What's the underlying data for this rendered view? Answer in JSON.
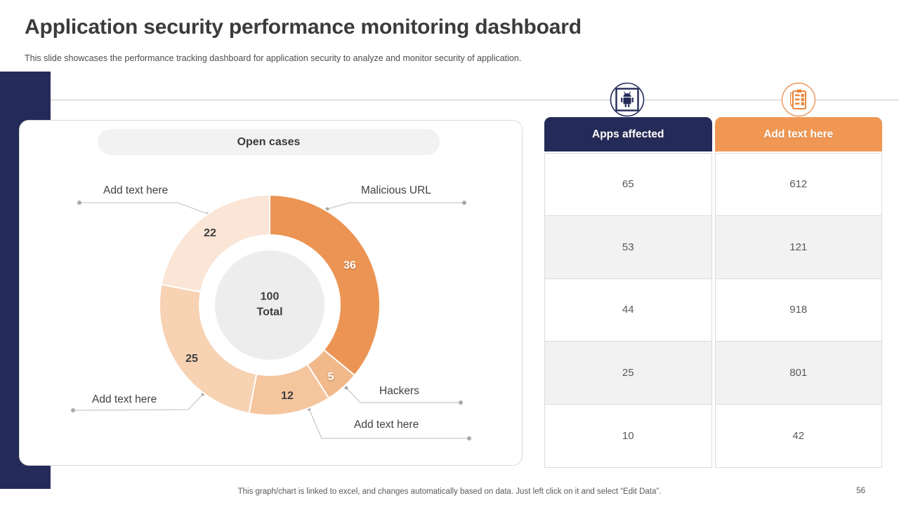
{
  "slide": {
    "title": "Application security performance monitoring dashboard",
    "subtitle": "This slide showcases the performance tracking dashboard for application security to analyze and monitor security of application.",
    "footer_note": "This graph/chart is linked to excel, and changes automatically based on data. Just left click on it and select “Edit Data”.",
    "page_number": "56"
  },
  "colors": {
    "navy": "#242b58",
    "orange": "#f09753",
    "panel_border": "#d9d9d9",
    "divider_gray": "#c6c6c6",
    "center_gray": "#ededed",
    "alt_row_gray": "#f2f2f2",
    "callout_line_gray": "#bdbdbd"
  },
  "donut": {
    "pill_label": "Open cases",
    "center": {
      "value": "100",
      "label": "Total"
    },
    "segments": [
      {
        "label": "Malicious URL",
        "value": 36,
        "color": "#ec9453",
        "value_color": "#ffffff"
      },
      {
        "label": "Hackers",
        "value": 5,
        "color": "#f1b88a",
        "value_color": "#ffffff"
      },
      {
        "label": "Add text here",
        "value": 12,
        "color": "#f5c59e",
        "value_color": "#3f3f3f"
      },
      {
        "label": "Add text here",
        "value": 25,
        "color": "#f7d2b3",
        "value_color": "#3f3f3f"
      },
      {
        "label": "Add text here",
        "value": 22,
        "color": "#fae5d6",
        "value_color": "#3f3f3f"
      }
    ]
  },
  "table": {
    "columns": [
      {
        "label": "Apps affected",
        "color": "#242b58",
        "icon": "android-icon"
      },
      {
        "label": "Add text here",
        "color": "#f09753",
        "icon": "clipboard-icon"
      }
    ],
    "rows": [
      {
        "apps": "65",
        "add": "612"
      },
      {
        "apps": "53",
        "add": "121"
      },
      {
        "apps": "44",
        "add": "918"
      },
      {
        "apps": "25",
        "add": "801"
      },
      {
        "apps": "10",
        "add": "42"
      }
    ]
  },
  "chart_data": [
    {
      "type": "pie",
      "title": "Open cases",
      "labels": [
        "Malicious URL",
        "Hackers",
        "Add text here",
        "Add text here",
        "Add text here"
      ],
      "values": [
        36,
        5,
        12,
        25,
        22
      ],
      "center_text": "100 Total",
      "donut": true,
      "start_angle_deg": 0,
      "direction": "clockwise",
      "legend_position": "callouts"
    },
    {
      "type": "table",
      "columns": [
        "Apps affected",
        "Add text here"
      ],
      "rows": [
        [
          65,
          612
        ],
        [
          53,
          121
        ],
        [
          44,
          918
        ],
        [
          25,
          801
        ],
        [
          10,
          42
        ]
      ]
    }
  ]
}
